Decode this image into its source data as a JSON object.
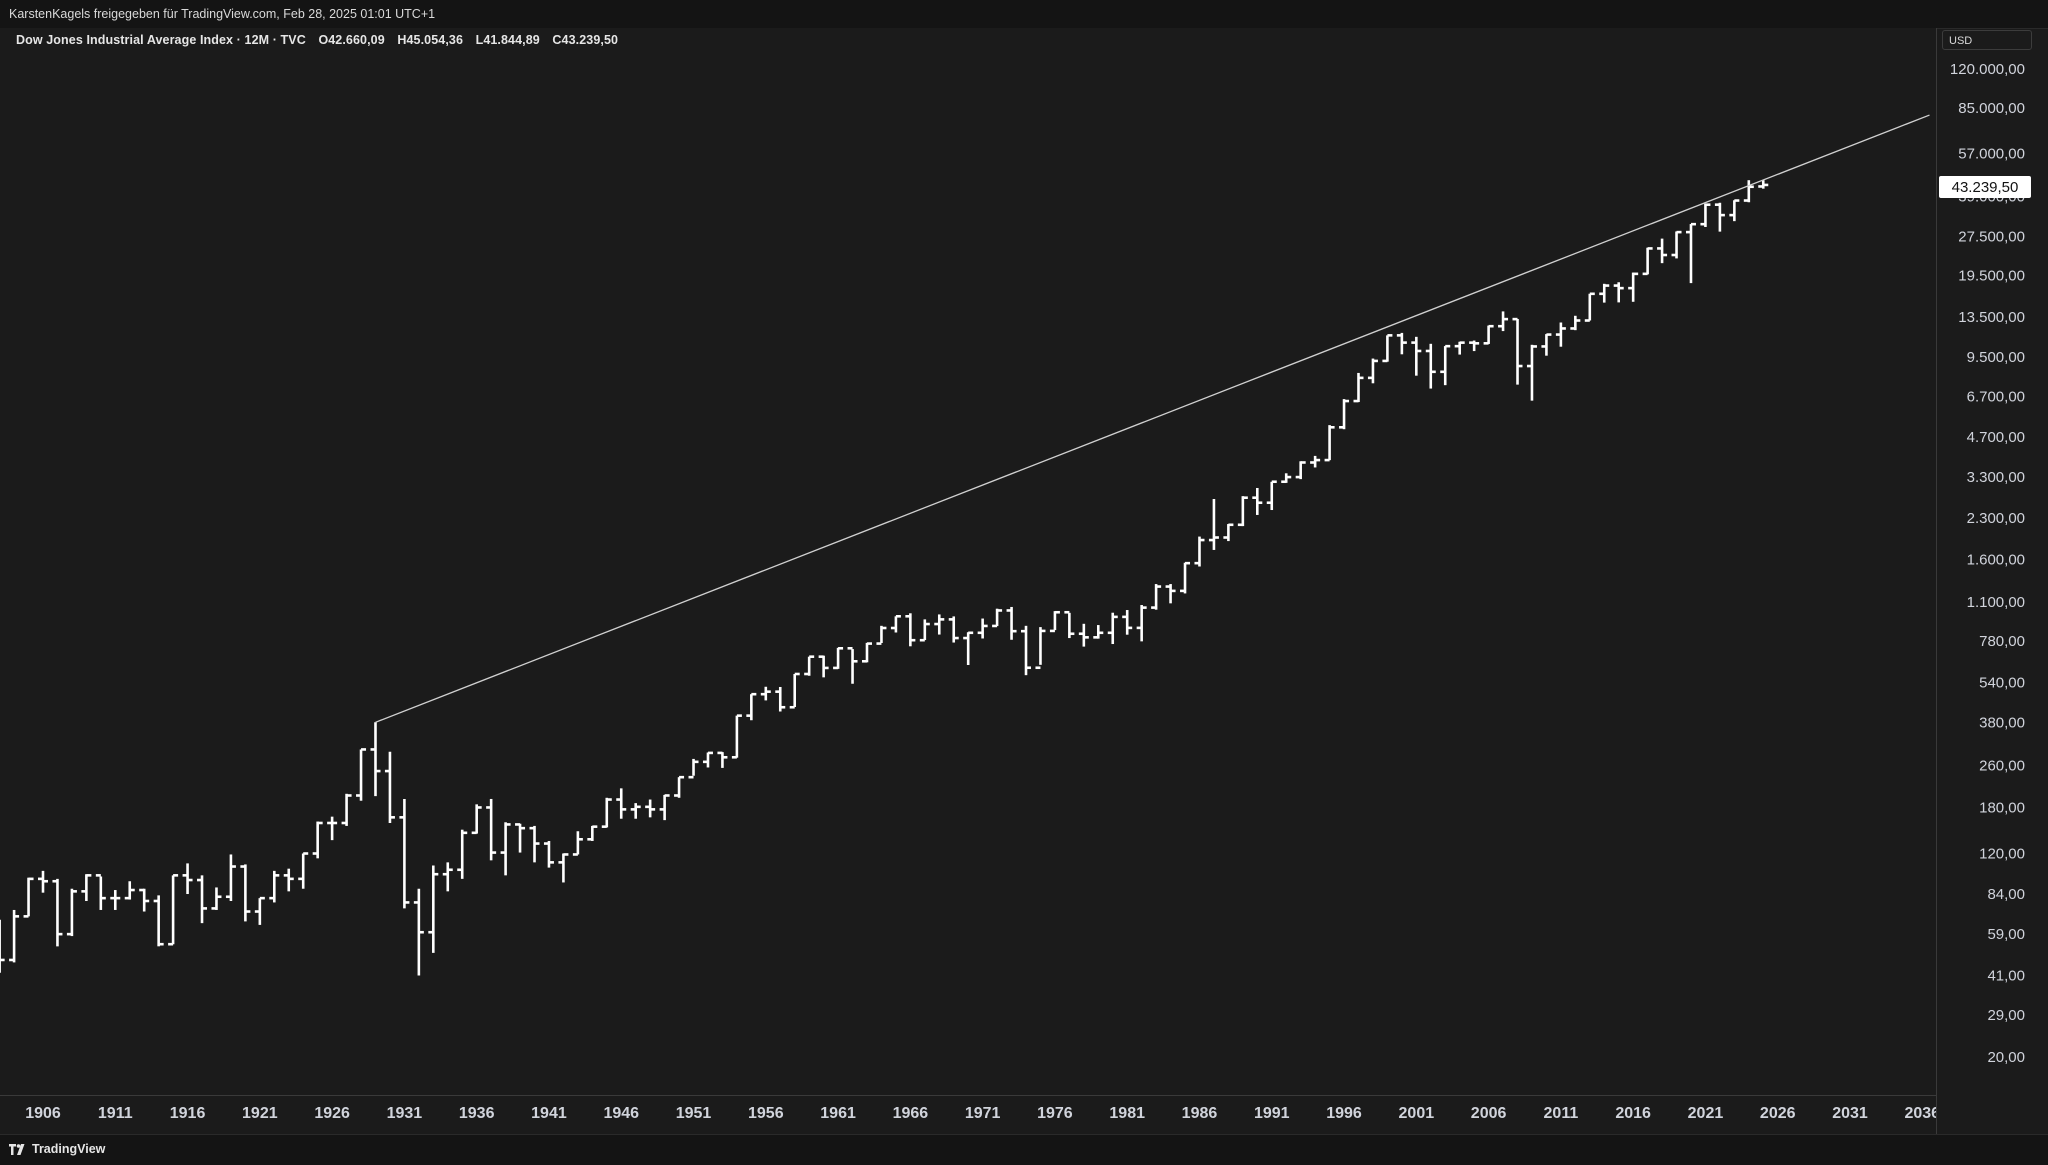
{
  "header": {
    "share_text": "KarstenKagels freigegeben für TradingView.com, Feb 28, 2025 01:01 UTC+1"
  },
  "symbol": {
    "title": "Dow Jones Industrial Average Index · 12M · TVC",
    "open": "O42.660,09",
    "high": "H45.054,36",
    "low": "L41.844,89",
    "close": "C43.239,50"
  },
  "price_axis": {
    "currency": "USD",
    "last_price_label": "43.239,50"
  },
  "footer": {
    "brand": "TradingView"
  },
  "colors": {
    "background": "#1b1b1b",
    "bars": "#ffffff",
    "trendline": "#d0d0d0",
    "axis_text": "#d1d4dc"
  },
  "chart_data": {
    "type": "ohlc-bar",
    "scale": "log",
    "interval": "12M",
    "ylim": [
      16,
      140000
    ],
    "xlim": [
      1902.5,
      2036.5
    ],
    "grid": false,
    "legend": "none",
    "y_ticks": [
      {
        "value": 120000,
        "label": "120.000,00"
      },
      {
        "value": 85000,
        "label": "85.000,00"
      },
      {
        "value": 57000,
        "label": "57.000,00"
      },
      {
        "value": 39000,
        "label": "39.000,00"
      },
      {
        "value": 27500,
        "label": "27.500,00"
      },
      {
        "value": 19500,
        "label": "19.500,00"
      },
      {
        "value": 13500,
        "label": "13.500,00"
      },
      {
        "value": 9500,
        "label": "9.500,00"
      },
      {
        "value": 6700,
        "label": "6.700,00"
      },
      {
        "value": 4700,
        "label": "4.700,00"
      },
      {
        "value": 3300,
        "label": "3.300,00"
      },
      {
        "value": 2300,
        "label": "2.300,00"
      },
      {
        "value": 1600,
        "label": "1.600,00"
      },
      {
        "value": 1100,
        "label": "1.100,00"
      },
      {
        "value": 780,
        "label": "780,00"
      },
      {
        "value": 540,
        "label": "540,00"
      },
      {
        "value": 380,
        "label": "380,00"
      },
      {
        "value": 260,
        "label": "260,00"
      },
      {
        "value": 180,
        "label": "180,00"
      },
      {
        "value": 120,
        "label": "120,00"
      },
      {
        "value": 84,
        "label": "84,00"
      },
      {
        "value": 59,
        "label": "59,00"
      },
      {
        "value": 41,
        "label": "41,00"
      },
      {
        "value": 29,
        "label": "29,00"
      },
      {
        "value": 20,
        "label": "20,00"
      }
    ],
    "x_ticks": [
      "1906",
      "1911",
      "1916",
      "1921",
      "1926",
      "1931",
      "1936",
      "1941",
      "1946",
      "1951",
      "1956",
      "1961",
      "1966",
      "1971",
      "1976",
      "1981",
      "1986",
      "1991",
      "1996",
      "2001",
      "2006",
      "2011",
      "2016",
      "2021",
      "2026",
      "2031",
      "2036"
    ],
    "last_price": 43239.5,
    "trendline": {
      "x1": 1929,
      "y1": 381,
      "x2": 2036.5,
      "y2": 80000
    },
    "bars": [
      {
        "year": 1903,
        "o": 64,
        "h": 67,
        "l": 42,
        "c": 47
      },
      {
        "year": 1904,
        "o": 47,
        "h": 73,
        "l": 46,
        "c": 69
      },
      {
        "year": 1905,
        "o": 69,
        "h": 97,
        "l": 69,
        "c": 96
      },
      {
        "year": 1906,
        "o": 96,
        "h": 103,
        "l": 85,
        "c": 94
      },
      {
        "year": 1907,
        "o": 94,
        "h": 96,
        "l": 53,
        "c": 59
      },
      {
        "year": 1908,
        "o": 59,
        "h": 88,
        "l": 58,
        "c": 86
      },
      {
        "year": 1909,
        "o": 86,
        "h": 100,
        "l": 79,
        "c": 99
      },
      {
        "year": 1910,
        "o": 99,
        "h": 98,
        "l": 73,
        "c": 81
      },
      {
        "year": 1911,
        "o": 81,
        "h": 87,
        "l": 73,
        "c": 81
      },
      {
        "year": 1912,
        "o": 81,
        "h": 94,
        "l": 80,
        "c": 87
      },
      {
        "year": 1913,
        "o": 87,
        "h": 88,
        "l": 72,
        "c": 79
      },
      {
        "year": 1914,
        "o": 79,
        "h": 83,
        "l": 53,
        "c": 54
      },
      {
        "year": 1915,
        "o": 54,
        "h": 99,
        "l": 54,
        "c": 99
      },
      {
        "year": 1916,
        "o": 99,
        "h": 110,
        "l": 84,
        "c": 95
      },
      {
        "year": 1917,
        "o": 95,
        "h": 99,
        "l": 65,
        "c": 74
      },
      {
        "year": 1918,
        "o": 74,
        "h": 89,
        "l": 73,
        "c": 82
      },
      {
        "year": 1919,
        "o": 82,
        "h": 119,
        "l": 79,
        "c": 107
      },
      {
        "year": 1920,
        "o": 107,
        "h": 109,
        "l": 66,
        "c": 72
      },
      {
        "year": 1921,
        "o": 72,
        "h": 81,
        "l": 64,
        "c": 81
      },
      {
        "year": 1922,
        "o": 81,
        "h": 103,
        "l": 78,
        "c": 99
      },
      {
        "year": 1923,
        "o": 99,
        "h": 105,
        "l": 86,
        "c": 96
      },
      {
        "year": 1924,
        "o": 96,
        "h": 120,
        "l": 88,
        "c": 120
      },
      {
        "year": 1925,
        "o": 120,
        "h": 159,
        "l": 115,
        "c": 157
      },
      {
        "year": 1926,
        "o": 157,
        "h": 166,
        "l": 135,
        "c": 157
      },
      {
        "year": 1927,
        "o": 157,
        "h": 203,
        "l": 153,
        "c": 200
      },
      {
        "year": 1928,
        "o": 200,
        "h": 300,
        "l": 191,
        "c": 300
      },
      {
        "year": 1929,
        "o": 300,
        "h": 381,
        "l": 199,
        "c": 248
      },
      {
        "year": 1930,
        "o": 248,
        "h": 294,
        "l": 157,
        "c": 165
      },
      {
        "year": 1931,
        "o": 165,
        "h": 194,
        "l": 74,
        "c": 78
      },
      {
        "year": 1932,
        "o": 78,
        "h": 88,
        "l": 41,
        "c": 60
      },
      {
        "year": 1933,
        "o": 60,
        "h": 108,
        "l": 50,
        "c": 100
      },
      {
        "year": 1934,
        "o": 100,
        "h": 111,
        "l": 86,
        "c": 104
      },
      {
        "year": 1935,
        "o": 104,
        "h": 148,
        "l": 96,
        "c": 144
      },
      {
        "year": 1936,
        "o": 144,
        "h": 185,
        "l": 143,
        "c": 180
      },
      {
        "year": 1937,
        "o": 180,
        "h": 194,
        "l": 113,
        "c": 121
      },
      {
        "year": 1938,
        "o": 121,
        "h": 158,
        "l": 99,
        "c": 155
      },
      {
        "year": 1939,
        "o": 155,
        "h": 156,
        "l": 121,
        "c": 150
      },
      {
        "year": 1940,
        "o": 150,
        "h": 153,
        "l": 111,
        "c": 131
      },
      {
        "year": 1941,
        "o": 131,
        "h": 134,
        "l": 106,
        "c": 111
      },
      {
        "year": 1942,
        "o": 111,
        "h": 120,
        "l": 93,
        "c": 119
      },
      {
        "year": 1943,
        "o": 119,
        "h": 146,
        "l": 119,
        "c": 136
      },
      {
        "year": 1944,
        "o": 136,
        "h": 153,
        "l": 134,
        "c": 152
      },
      {
        "year": 1945,
        "o": 152,
        "h": 196,
        "l": 151,
        "c": 193
      },
      {
        "year": 1946,
        "o": 193,
        "h": 213,
        "l": 163,
        "c": 177
      },
      {
        "year": 1947,
        "o": 177,
        "h": 187,
        "l": 163,
        "c": 181
      },
      {
        "year": 1948,
        "o": 181,
        "h": 193,
        "l": 165,
        "c": 177
      },
      {
        "year": 1949,
        "o": 177,
        "h": 201,
        "l": 161,
        "c": 200
      },
      {
        "year": 1950,
        "o": 200,
        "h": 235,
        "l": 196,
        "c": 235
      },
      {
        "year": 1951,
        "o": 235,
        "h": 276,
        "l": 238,
        "c": 269
      },
      {
        "year": 1952,
        "o": 269,
        "h": 292,
        "l": 256,
        "c": 291
      },
      {
        "year": 1953,
        "o": 291,
        "h": 293,
        "l": 255,
        "c": 280
      },
      {
        "year": 1954,
        "o": 280,
        "h": 404,
        "l": 279,
        "c": 404
      },
      {
        "year": 1955,
        "o": 404,
        "h": 488,
        "l": 388,
        "c": 488
      },
      {
        "year": 1956,
        "o": 488,
        "h": 521,
        "l": 462,
        "c": 499
      },
      {
        "year": 1957,
        "o": 499,
        "h": 520,
        "l": 419,
        "c": 435
      },
      {
        "year": 1958,
        "o": 435,
        "h": 583,
        "l": 436,
        "c": 583
      },
      {
        "year": 1959,
        "o": 583,
        "h": 679,
        "l": 574,
        "c": 679
      },
      {
        "year": 1960,
        "o": 679,
        "h": 685,
        "l": 566,
        "c": 615
      },
      {
        "year": 1961,
        "o": 615,
        "h": 734,
        "l": 610,
        "c": 731
      },
      {
        "year": 1962,
        "o": 731,
        "h": 726,
        "l": 535,
        "c": 652
      },
      {
        "year": 1963,
        "o": 652,
        "h": 767,
        "l": 646,
        "c": 762
      },
      {
        "year": 1964,
        "o": 762,
        "h": 891,
        "l": 766,
        "c": 874
      },
      {
        "year": 1965,
        "o": 874,
        "h": 969,
        "l": 840,
        "c": 969
      },
      {
        "year": 1966,
        "o": 969,
        "h": 995,
        "l": 744,
        "c": 785
      },
      {
        "year": 1967,
        "o": 785,
        "h": 943,
        "l": 786,
        "c": 905
      },
      {
        "year": 1968,
        "o": 905,
        "h": 985,
        "l": 825,
        "c": 943
      },
      {
        "year": 1969,
        "o": 943,
        "h": 968,
        "l": 769,
        "c": 800
      },
      {
        "year": 1970,
        "o": 800,
        "h": 842,
        "l": 631,
        "c": 838
      },
      {
        "year": 1971,
        "o": 838,
        "h": 950,
        "l": 797,
        "c": 890
      },
      {
        "year": 1972,
        "o": 890,
        "h": 1036,
        "l": 889,
        "c": 1020
      },
      {
        "year": 1973,
        "o": 1020,
        "h": 1052,
        "l": 788,
        "c": 850
      },
      {
        "year": 1974,
        "o": 850,
        "h": 891,
        "l": 577,
        "c": 616
      },
      {
        "year": 1975,
        "o": 616,
        "h": 881,
        "l": 632,
        "c": 852
      },
      {
        "year": 1976,
        "o": 852,
        "h": 1014,
        "l": 858,
        "c": 1004
      },
      {
        "year": 1977,
        "o": 1004,
        "h": 999,
        "l": 800,
        "c": 831
      },
      {
        "year": 1978,
        "o": 831,
        "h": 907,
        "l": 742,
        "c": 805
      },
      {
        "year": 1979,
        "o": 805,
        "h": 897,
        "l": 796,
        "c": 838
      },
      {
        "year": 1980,
        "o": 838,
        "h": 1000,
        "l": 759,
        "c": 964
      },
      {
        "year": 1981,
        "o": 964,
        "h": 1024,
        "l": 824,
        "c": 875
      },
      {
        "year": 1982,
        "o": 875,
        "h": 1070,
        "l": 777,
        "c": 1046
      },
      {
        "year": 1983,
        "o": 1046,
        "h": 1287,
        "l": 1027,
        "c": 1259
      },
      {
        "year": 1984,
        "o": 1259,
        "h": 1287,
        "l": 1086,
        "c": 1212
      },
      {
        "year": 1985,
        "o": 1212,
        "h": 1553,
        "l": 1185,
        "c": 1547
      },
      {
        "year": 1986,
        "o": 1547,
        "h": 1955,
        "l": 1502,
        "c": 1896
      },
      {
        "year": 1987,
        "o": 1896,
        "h": 2722,
        "l": 1738,
        "c": 1939
      },
      {
        "year": 1988,
        "o": 1939,
        "h": 2183,
        "l": 1879,
        "c": 2169
      },
      {
        "year": 1989,
        "o": 2169,
        "h": 2791,
        "l": 2144,
        "c": 2753
      },
      {
        "year": 1990,
        "o": 2753,
        "h": 2999,
        "l": 2365,
        "c": 2634
      },
      {
        "year": 1991,
        "o": 2634,
        "h": 3168,
        "l": 2470,
        "c": 3169
      },
      {
        "year": 1992,
        "o": 3169,
        "h": 3413,
        "l": 3137,
        "c": 3301
      },
      {
        "year": 1993,
        "o": 3301,
        "h": 3794,
        "l": 3242,
        "c": 3754
      },
      {
        "year": 1994,
        "o": 3754,
        "h": 3978,
        "l": 3593,
        "c": 3834
      },
      {
        "year": 1995,
        "o": 3834,
        "h": 5216,
        "l": 3832,
        "c": 5117
      },
      {
        "year": 1996,
        "o": 5117,
        "h": 6560,
        "l": 5032,
        "c": 6448
      },
      {
        "year": 1997,
        "o": 6448,
        "h": 8259,
        "l": 6391,
        "c": 7908
      },
      {
        "year": 1998,
        "o": 7908,
        "h": 9374,
        "l": 7539,
        "c": 9181
      },
      {
        "year": 1999,
        "o": 9181,
        "h": 11497,
        "l": 9120,
        "c": 11497
      },
      {
        "year": 2000,
        "o": 11497,
        "h": 11750,
        "l": 9731,
        "c": 10787
      },
      {
        "year": 2001,
        "o": 10787,
        "h": 11350,
        "l": 8062,
        "c": 10021
      },
      {
        "year": 2002,
        "o": 10021,
        "h": 10673,
        "l": 7197,
        "c": 8342
      },
      {
        "year": 2003,
        "o": 8342,
        "h": 10462,
        "l": 7416,
        "c": 10454
      },
      {
        "year": 2004,
        "o": 10454,
        "h": 10868,
        "l": 9708,
        "c": 10783
      },
      {
        "year": 2005,
        "o": 10783,
        "h": 10984,
        "l": 10012,
        "c": 10718
      },
      {
        "year": 2006,
        "o": 10718,
        "h": 12529,
        "l": 10661,
        "c": 12463
      },
      {
        "year": 2007,
        "o": 12463,
        "h": 14198,
        "l": 11939,
        "c": 13265
      },
      {
        "year": 2008,
        "o": 13265,
        "h": 13279,
        "l": 7449,
        "c": 8776
      },
      {
        "year": 2009,
        "o": 8776,
        "h": 10580,
        "l": 6470,
        "c": 10428
      },
      {
        "year": 2010,
        "o": 10428,
        "h": 11625,
        "l": 9614,
        "c": 11578
      },
      {
        "year": 2011,
        "o": 11578,
        "h": 12876,
        "l": 10404,
        "c": 12218
      },
      {
        "year": 2012,
        "o": 12218,
        "h": 13661,
        "l": 12036,
        "c": 13104
      },
      {
        "year": 2013,
        "o": 13104,
        "h": 16588,
        "l": 13105,
        "c": 16577
      },
      {
        "year": 2014,
        "o": 16577,
        "h": 18103,
        "l": 15341,
        "c": 17823
      },
      {
        "year": 2015,
        "o": 17823,
        "h": 18351,
        "l": 15370,
        "c": 17425
      },
      {
        "year": 2016,
        "o": 17425,
        "h": 19987,
        "l": 15451,
        "c": 19763
      },
      {
        "year": 2017,
        "o": 19763,
        "h": 24876,
        "l": 19678,
        "c": 24719
      },
      {
        "year": 2018,
        "o": 24719,
        "h": 26952,
        "l": 21713,
        "c": 23327
      },
      {
        "year": 2019,
        "o": 23327,
        "h": 28702,
        "l": 22638,
        "c": 28538
      },
      {
        "year": 2020,
        "o": 28538,
        "h": 30637,
        "l": 18214,
        "c": 30606
      },
      {
        "year": 2021,
        "o": 30606,
        "h": 36679,
        "l": 29857,
        "c": 36338
      },
      {
        "year": 2022,
        "o": 36338,
        "h": 36953,
        "l": 28661,
        "c": 33147
      },
      {
        "year": 2023,
        "o": 33147,
        "h": 37778,
        "l": 31430,
        "c": 37689
      },
      {
        "year": 2024,
        "o": 37689,
        "h": 45074,
        "l": 37122,
        "c": 42544
      },
      {
        "year": 2025,
        "o": 42660,
        "h": 45054,
        "l": 41845,
        "c": 43239
      }
    ]
  }
}
